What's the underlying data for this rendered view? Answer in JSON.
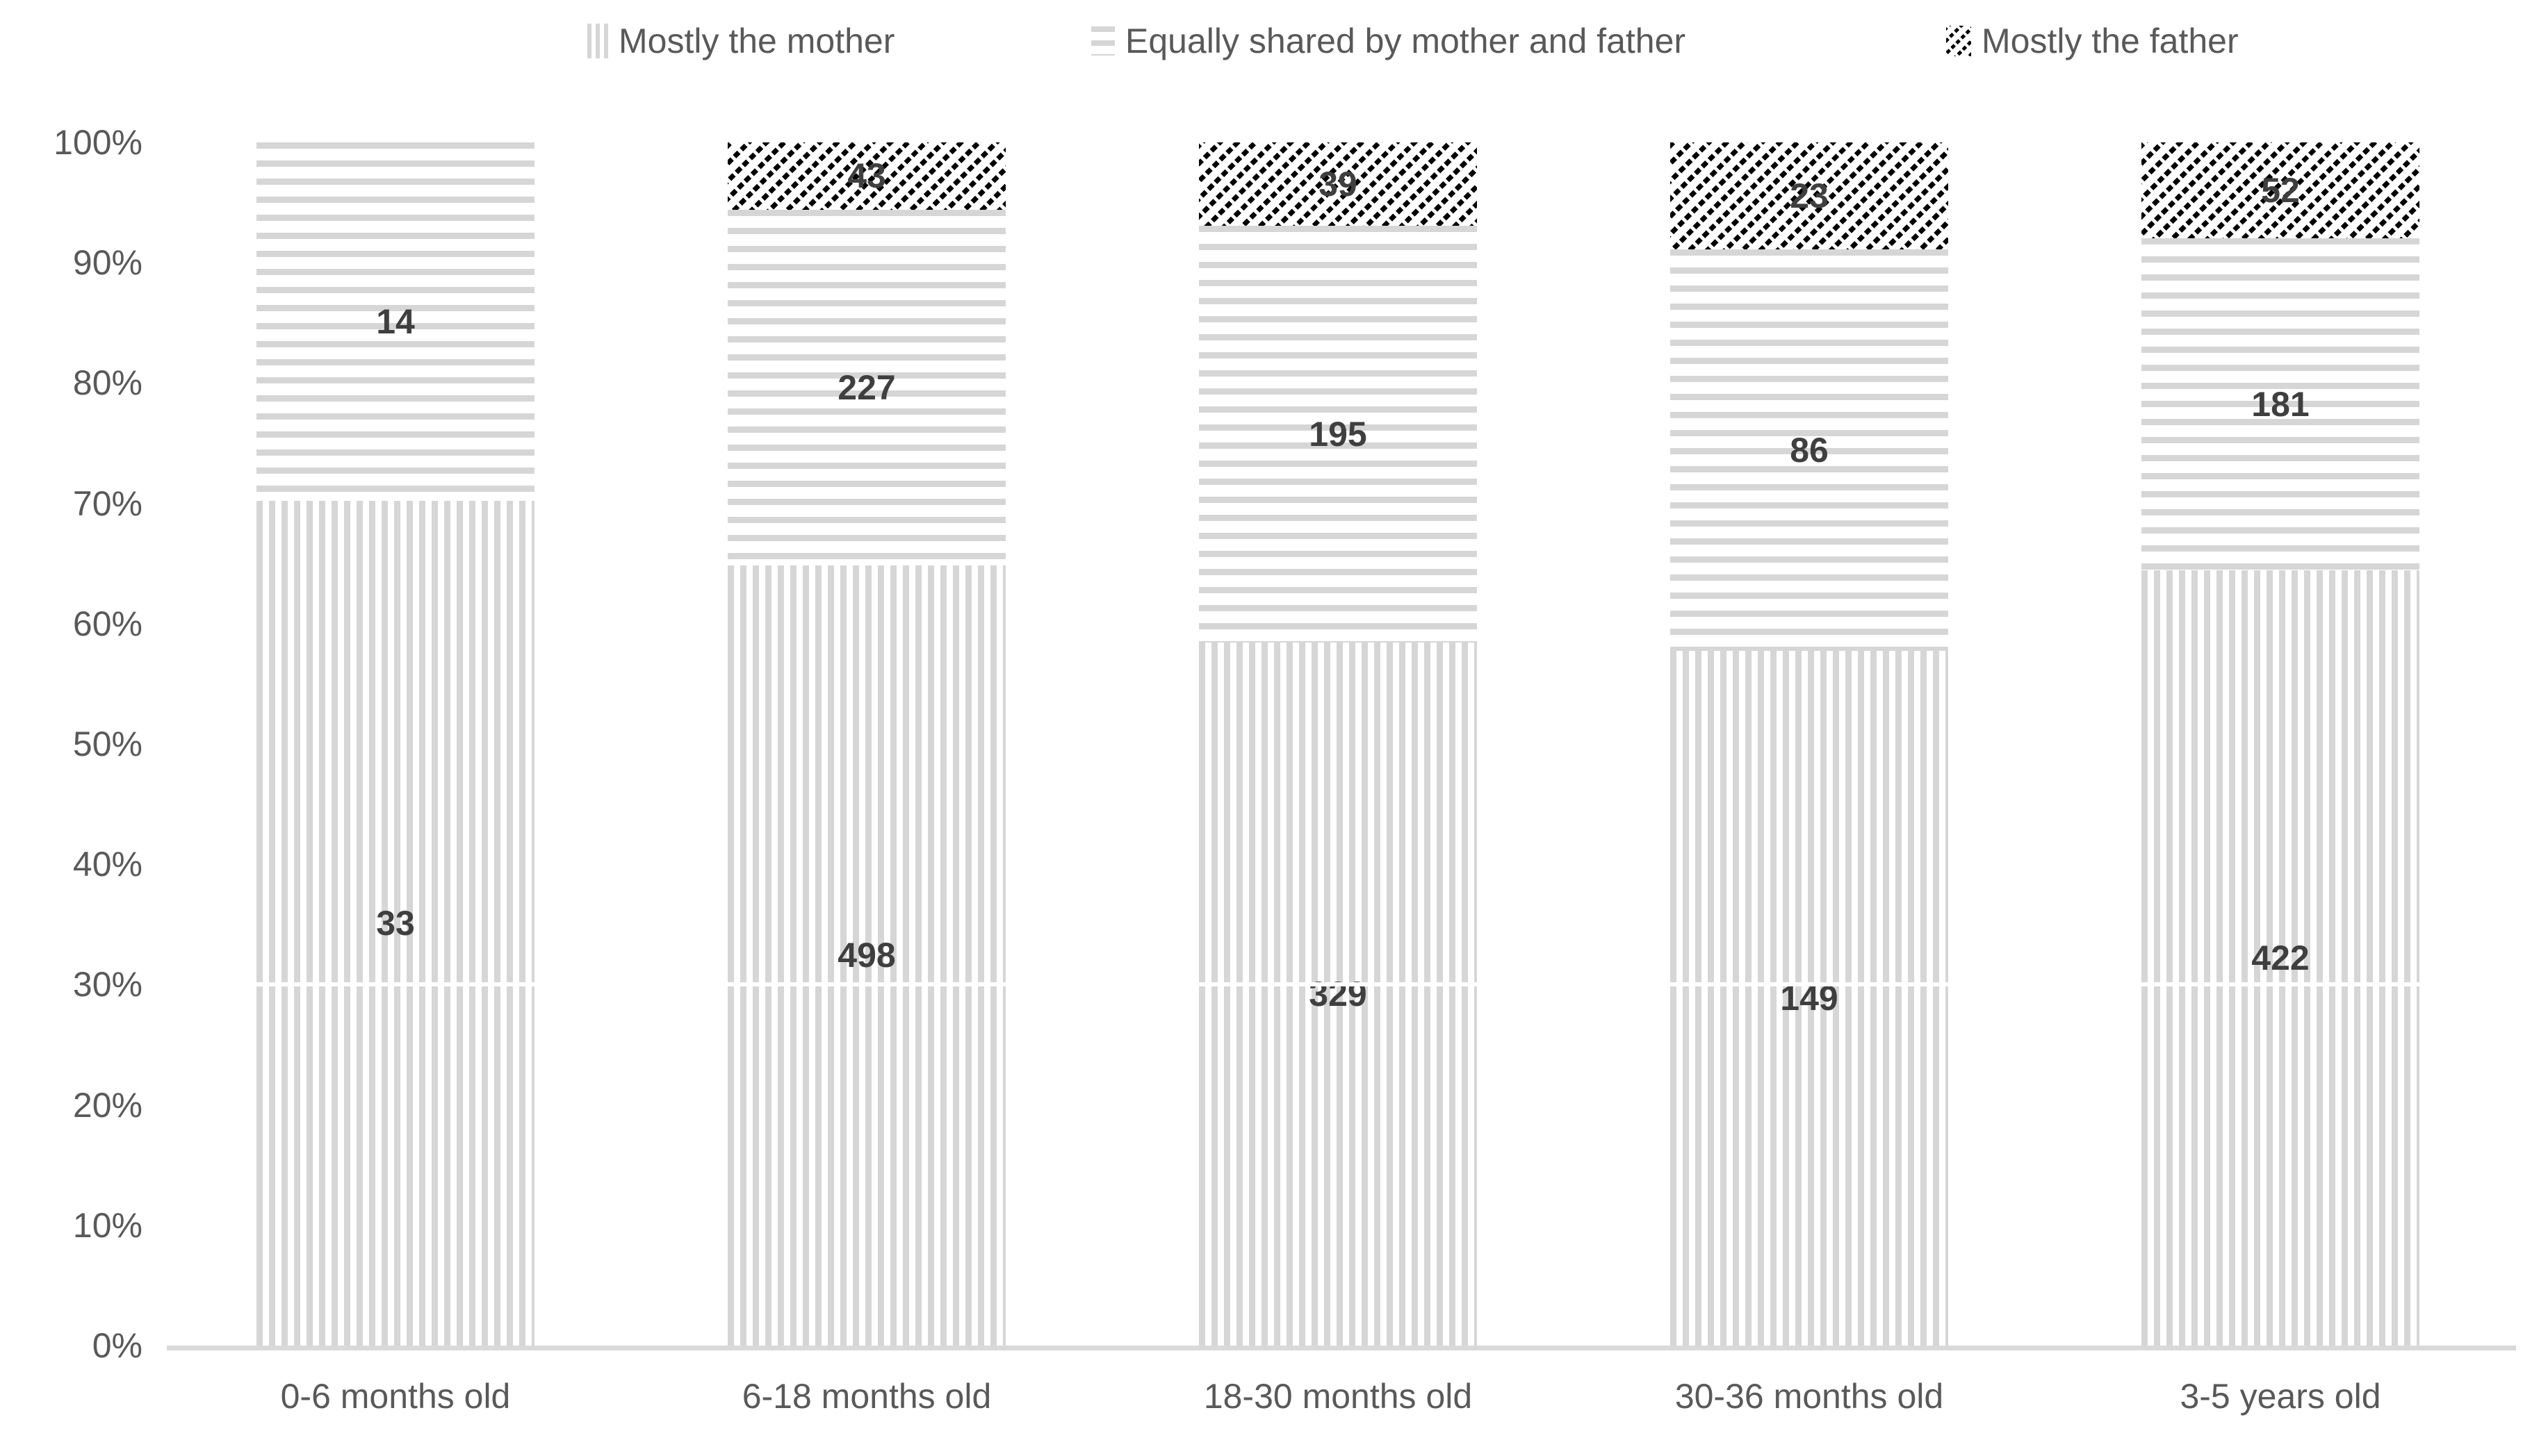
{
  "chart_data": {
    "type": "bar",
    "subtype": "100%-stacked-column",
    "title": "",
    "categories": [
      "0-6 months old",
      "6-18 months old",
      "18-30 months old",
      "30-36 months old",
      "3-5 years old"
    ],
    "series": [
      {
        "name": "Mostly the mother",
        "pattern": "vertical-stripes",
        "values": [
          33,
          498,
          329,
          149,
          422
        ]
      },
      {
        "name": "Equally shared by mother and father",
        "pattern": "horizontal-stripes",
        "values": [
          14,
          227,
          195,
          86,
          181
        ]
      },
      {
        "name": "Mostly the father",
        "pattern": "diagonal-stripes",
        "values": [
          0,
          43,
          39,
          23,
          52
        ]
      }
    ],
    "value_labels_shown": true,
    "y_axis": {
      "min": 0,
      "max": 100,
      "ticks": [
        "0%",
        "10%",
        "20%",
        "30%",
        "40%",
        "50%",
        "60%",
        "70%",
        "80%",
        "90%",
        "100%"
      ]
    },
    "legend_position": "top",
    "gridlines": false
  },
  "colors": {
    "stripe_gray": "#d6d6d6",
    "axis_line": "#d9d9d9",
    "tick_text": "#595959",
    "data_label_text": "#3f3f3f",
    "pattern_black": "#000000",
    "background": "#ffffff"
  }
}
